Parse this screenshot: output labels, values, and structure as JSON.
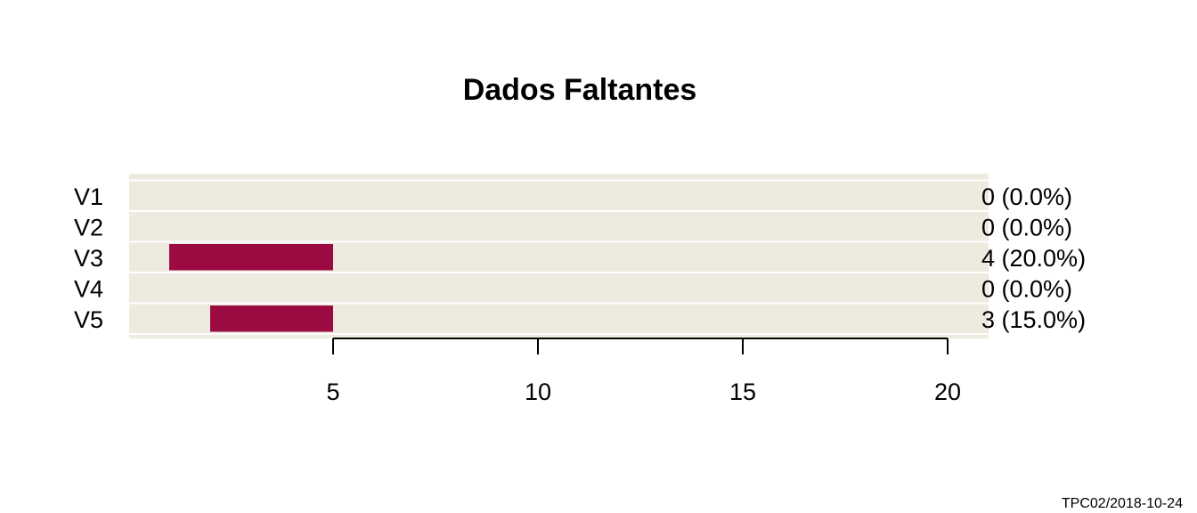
{
  "chart_data": {
    "type": "bar",
    "orientation": "horizontal",
    "title": "Dados Faltantes",
    "xlabel": "",
    "ylabel": "",
    "categories": [
      "V1",
      "V2",
      "V3",
      "V4",
      "V5"
    ],
    "values": [
      0,
      0,
      4,
      0,
      3
    ],
    "value_labels": [
      "0 (0.0%)",
      "0 (0.0%)",
      "4 (20.0%)",
      "0 (0.0%)",
      "3 (15.0%)"
    ],
    "bar_ranges": [
      null,
      null,
      [
        1,
        5
      ],
      null,
      [
        2,
        5
      ]
    ],
    "xlim": [
      0,
      21
    ],
    "xticks": [
      5,
      10,
      15,
      20
    ],
    "grid": true,
    "colors": {
      "bar": "#9B0A41",
      "panel": "#EEEADF",
      "grid": "#FFFFFF"
    }
  },
  "footer": "TPC02/2018-10-24"
}
